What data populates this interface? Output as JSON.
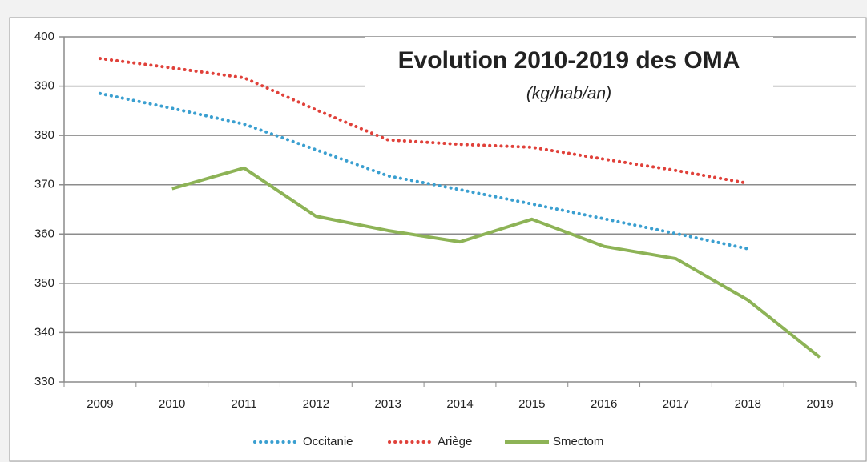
{
  "chart_data": {
    "type": "line",
    "title": "Evolution 2010-2019 des OMA",
    "subtitle": "(kg/hab/an)",
    "categories": [
      "2009",
      "2010",
      "2011",
      "2012",
      "2013",
      "2014",
      "2015",
      "2016",
      "2017",
      "2018",
      "2019"
    ],
    "series": [
      {
        "name": "Occitanie",
        "color": "#3a9fd0",
        "style": "dotted",
        "values": [
          388.5,
          385.5,
          382.3,
          377.1,
          371.8,
          369,
          366.1,
          363.1,
          360.1,
          357,
          null
        ]
      },
      {
        "name": "Ariège",
        "color": "#e0413a",
        "style": "dotted",
        "values": [
          395.6,
          393.7,
          391.7,
          385.2,
          379.1,
          378.2,
          377.6,
          375.2,
          372.9,
          370.3,
          null
        ]
      },
      {
        "name": "Smectom",
        "color": "#8db356",
        "style": "solid",
        "values": [
          null,
          369.2,
          373.4,
          363.6,
          360.7,
          358.4,
          363,
          357.5,
          355,
          346.6,
          335
        ]
      }
    ],
    "ylim": [
      330,
      400
    ],
    "yticks": [
      330,
      340,
      350,
      360,
      370,
      380,
      390,
      400
    ],
    "grid": true,
    "legend": "bottom"
  }
}
